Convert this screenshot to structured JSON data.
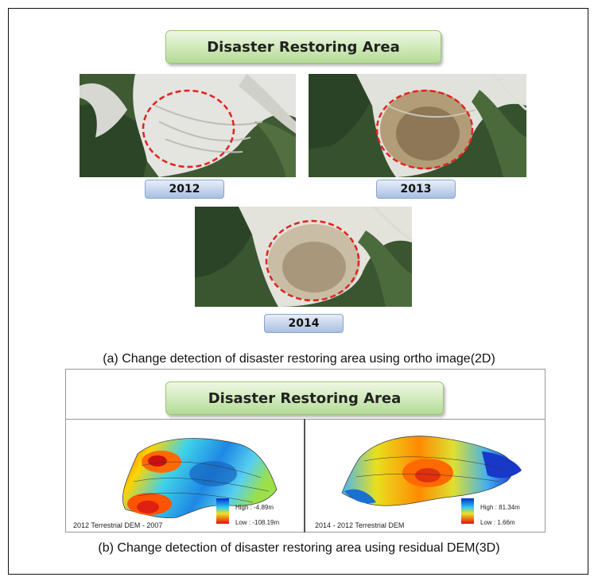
{
  "top_section": {
    "banner_title": "Disaster Restoring Area",
    "photos": [
      {
        "year": "2012"
      },
      {
        "year": "2013"
      },
      {
        "year": "2014"
      }
    ],
    "caption": "(a) Change detection of disaster restoring area using ortho image(2D)"
  },
  "bottom_section": {
    "banner_title": "Disaster Restoring Area",
    "maps": [
      {
        "label": "2012 Terrestrial  DEM - 2007",
        "legend_high": "High : -4.89m",
        "legend_low": "Low : -108.19m"
      },
      {
        "label": "2014 - 2012 Terrestrial  DEM",
        "legend_high": "High : 81.34m",
        "legend_low": "Low : 1.66m"
      }
    ],
    "caption": "(b) Change detection of disaster restoring area using residual DEM(3D)"
  }
}
